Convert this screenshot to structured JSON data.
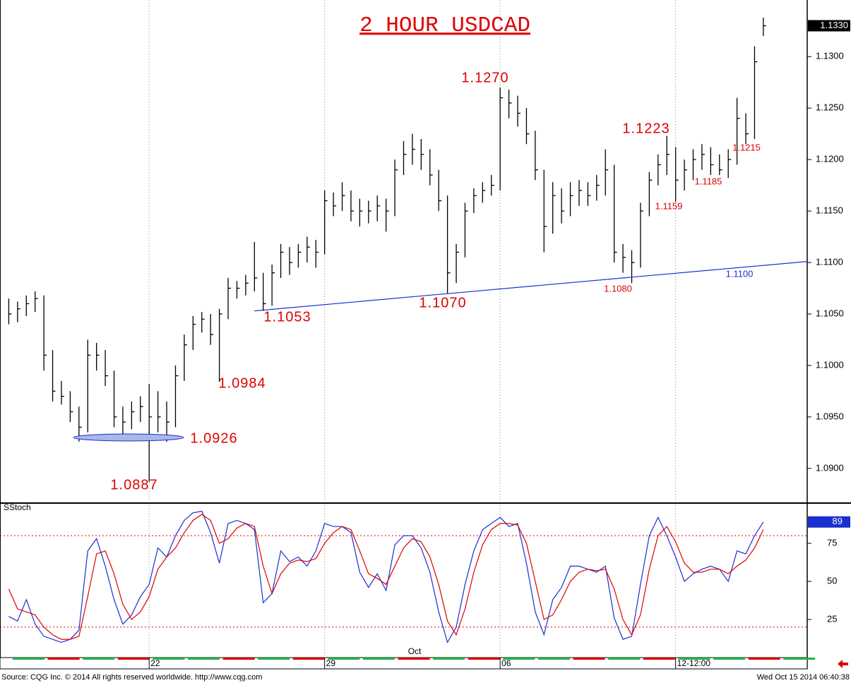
{
  "chart_data": [
    {
      "type": "ohlc",
      "title": "2 HOUR USDCAD",
      "xlim": [
        0,
        92
      ],
      "ylim": [
        1.0867,
        1.1355
      ],
      "yticks": [
        {
          "value": 1.09,
          "label": "1.0900"
        },
        {
          "value": 1.095,
          "label": "1.0950"
        },
        {
          "value": 1.1,
          "label": "1.1000"
        },
        {
          "value": 1.105,
          "label": "1.1050"
        },
        {
          "value": 1.11,
          "label": "1.1100"
        },
        {
          "value": 1.115,
          "label": "1.1150"
        },
        {
          "value": 1.12,
          "label": "1.1200"
        },
        {
          "value": 1.125,
          "label": "1.1250"
        },
        {
          "value": 1.13,
          "label": "1.1300"
        }
      ],
      "color": "#000000",
      "high": [
        1.1065,
        1.1062,
        1.1068,
        1.1072,
        1.1068,
        1.1015,
        1.0985,
        1.0975,
        1.096,
        1.1025,
        1.1022,
        1.1015,
        1.0995,
        1.096,
        1.0965,
        1.097,
        1.0982,
        1.0975,
        1.0965,
        1.1,
        1.103,
        1.1048,
        1.1052,
        1.105,
        1.1055,
        1.1085,
        1.1082,
        1.1088,
        1.112,
        1.109,
        1.1098,
        1.1118,
        1.1115,
        1.1118,
        1.1125,
        1.1122,
        1.117,
        1.1168,
        1.1178,
        1.117,
        1.1162,
        1.116,
        1.1165,
        1.1162,
        1.12,
        1.1218,
        1.1225,
        1.122,
        1.121,
        1.119,
        1.1165,
        1.1118,
        1.1158,
        1.1172,
        1.1178,
        1.1185,
        1.127,
        1.1268,
        1.1262,
        1.125,
        1.1228,
        1.119,
        1.1178,
        1.1172,
        1.1178,
        1.118,
        1.1178,
        1.1185,
        1.121,
        1.1195,
        1.1118,
        1.1112,
        1.1158,
        1.1188,
        1.1205,
        1.1223,
        1.1212,
        1.12,
        1.121,
        1.1215,
        1.1212,
        1.1205,
        1.121,
        1.126,
        1.1245,
        1.131,
        1.1338
      ],
      "low": [
        1.104,
        1.1042,
        1.1048,
        1.1052,
        1.0995,
        1.0965,
        1.0962,
        1.0945,
        1.0926,
        1.0935,
        1.0995,
        1.098,
        1.094,
        1.093,
        1.0938,
        1.0945,
        1.0887,
        1.0935,
        1.0926,
        1.094,
        1.0985,
        1.1015,
        1.1032,
        1.102,
        1.0984,
        1.1045,
        1.1065,
        1.1068,
        1.1072,
        1.1053,
        1.1058,
        1.1085,
        1.1088,
        1.1095,
        1.11,
        1.1095,
        1.1108,
        1.1145,
        1.115,
        1.114,
        1.1135,
        1.1138,
        1.114,
        1.113,
        1.1145,
        1.1185,
        1.1195,
        1.119,
        1.1175,
        1.115,
        1.107,
        1.108,
        1.1105,
        1.1148,
        1.1158,
        1.1165,
        1.117,
        1.124,
        1.1232,
        1.1215,
        1.118,
        1.111,
        1.1128,
        1.1138,
        1.1145,
        1.1155,
        1.1155,
        1.116,
        1.1165,
        1.11,
        1.109,
        1.108,
        1.1095,
        1.1145,
        1.1175,
        1.1185,
        1.1159,
        1.117,
        1.118,
        1.119,
        1.1185,
        1.1185,
        1.1182,
        1.1195,
        1.1215,
        1.122,
        1.132
      ],
      "close": [
        1.105,
        1.1055,
        1.106,
        1.1065,
        1.101,
        1.0975,
        1.097,
        1.0955,
        1.094,
        1.101,
        1.101,
        1.099,
        1.095,
        1.0945,
        1.0955,
        1.096,
        1.095,
        1.095,
        1.0945,
        1.099,
        1.102,
        1.104,
        1.1045,
        1.103,
        1.105,
        1.1075,
        1.1075,
        1.108,
        1.1085,
        1.106,
        1.109,
        1.111,
        1.11,
        1.111,
        1.1115,
        1.111,
        1.116,
        1.1155,
        1.1165,
        1.115,
        1.115,
        1.115,
        1.1155,
        1.115,
        1.119,
        1.1205,
        1.121,
        1.1205,
        1.1185,
        1.116,
        1.109,
        1.111,
        1.115,
        1.1165,
        1.117,
        1.1175,
        1.126,
        1.1255,
        1.1245,
        1.1225,
        1.119,
        1.1135,
        1.1165,
        1.115,
        1.1165,
        1.117,
        1.1165,
        1.1175,
        1.119,
        1.111,
        1.1105,
        1.11,
        1.115,
        1.118,
        1.1195,
        1.1205,
        1.118,
        1.119,
        1.12,
        1.1205,
        1.1195,
        1.119,
        1.12,
        1.124,
        1.1225,
        1.1295,
        1.133
      ],
      "last_value": {
        "value": 1.133,
        "label": "1.1330"
      },
      "trendline": {
        "x": [
          29,
          92
        ],
        "values": [
          1.1053,
          1.1101
        ],
        "color": "#1a2fd0"
      },
      "annotations": [
        "1.1270",
        "1.1223",
        "1.1215",
        "1.1185",
        "1.1159",
        "1.1053",
        "1.1070",
        "1.1080",
        "1.1100",
        "1.0984",
        "1.0926",
        "1.0887"
      ]
    },
    {
      "type": "line",
      "title": "SStoch",
      "xlim": [
        0,
        92
      ],
      "ylim": [
        0,
        100
      ],
      "yticks": [
        25,
        50,
        75
      ],
      "levels": [
        20,
        80
      ],
      "xticks": [
        {
          "value": 17,
          "label": "22"
        },
        {
          "value": 37,
          "label": "29"
        },
        {
          "value": 57,
          "label": "06"
        },
        {
          "value": 77,
          "label": "12-12:00"
        }
      ],
      "month_label": {
        "value": 46.5,
        "label": "Oct"
      },
      "series": [
        {
          "color": "#1a2fd0",
          "values": [
            27,
            24,
            38,
            22,
            14,
            12,
            10,
            12,
            18,
            70,
            78,
            60,
            38,
            22,
            28,
            40,
            48,
            72,
            66,
            80,
            90,
            95,
            96,
            82,
            62,
            88,
            90,
            88,
            84,
            36,
            42,
            70,
            63,
            66,
            60,
            70,
            88,
            86,
            86,
            82,
            56,
            46,
            55,
            44,
            74,
            80,
            80,
            72,
            56,
            30,
            10,
            20,
            48,
            70,
            84,
            88,
            92,
            86,
            88,
            62,
            30,
            15,
            38,
            46,
            60,
            60,
            58,
            56,
            60,
            26,
            12,
            14,
            48,
            80,
            92,
            80,
            66,
            50,
            55,
            58,
            60,
            58,
            50,
            70,
            68,
            80,
            89
          ]
        },
        {
          "color": "#e00000",
          "values": [
            45,
            32,
            30,
            28,
            20,
            15,
            12,
            12,
            14,
            40,
            68,
            70,
            55,
            35,
            25,
            30,
            40,
            58,
            66,
            72,
            82,
            90,
            94,
            90,
            75,
            78,
            85,
            88,
            86,
            60,
            42,
            55,
            62,
            64,
            63,
            65,
            75,
            82,
            86,
            84,
            70,
            55,
            52,
            48,
            60,
            72,
            78,
            76,
            66,
            48,
            24,
            15,
            32,
            56,
            74,
            84,
            88,
            88,
            87,
            75,
            50,
            25,
            28,
            38,
            50,
            56,
            58,
            57,
            58,
            45,
            25,
            15,
            28,
            58,
            80,
            86,
            76,
            62,
            56,
            56,
            58,
            58,
            55,
            60,
            64,
            72,
            84
          ]
        }
      ]
    }
  ],
  "footer": {
    "source": "Source: CQG Inc. © 2014 All rights reserved worldwide. http://www.cqg.com",
    "timestamp": "Wed Oct 15 2014 06:40:38"
  }
}
